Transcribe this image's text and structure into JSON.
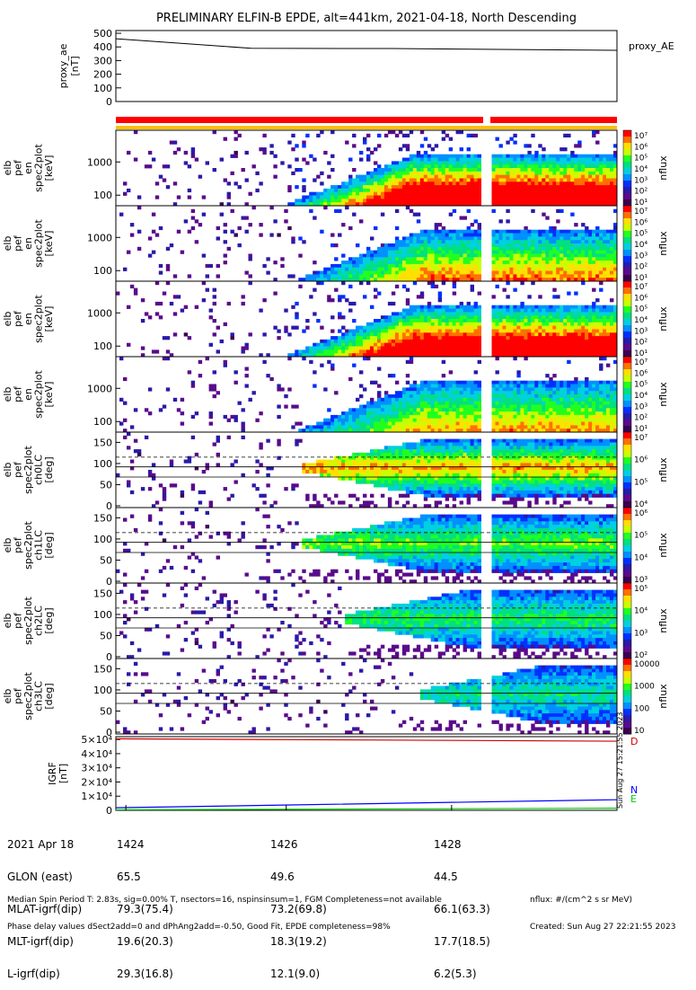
{
  "title": "PRELIMINARY ELFIN-B EPDE, alt=441km, 2021-04-18, North Descending",
  "colors": {
    "red": "#ff0000",
    "orange": "#ffbf00",
    "trace": "#000000",
    "bz": "#cc0000",
    "bx": "#0000ff",
    "by": "#00cc00"
  },
  "chart_data": [
    {
      "type": "line",
      "name": "proxy_ae",
      "ylabel": [
        "proxy_ae",
        "[nT]"
      ],
      "legend": "proxy_AE",
      "ylim": [
        0,
        520
      ],
      "yticks": [
        "500",
        "400",
        "300",
        "200",
        "100",
        "0"
      ],
      "x": [
        0,
        0.27,
        0.55,
        1.0
      ],
      "y": [
        460,
        390,
        388,
        375
      ]
    },
    {
      "type": "heatmap",
      "name": "en-spectrogram-1",
      "ylabel": [
        "elb",
        "pef",
        "en",
        "spec2plot",
        "[keV]"
      ],
      "yticks": [
        "1000",
        "100"
      ],
      "cbar": [
        "10⁷",
        "10⁶",
        "10⁵",
        "10⁴",
        "10³",
        "10²",
        "10¹"
      ],
      "cbar_label": "nflux"
    },
    {
      "type": "heatmap",
      "name": "en-spectrogram-2",
      "ylabel": [
        "elb",
        "pef",
        "en",
        "spec2plot",
        "[keV]"
      ],
      "yticks": [
        "1000",
        "100"
      ],
      "cbar": [
        "10⁷",
        "10⁶",
        "10⁵",
        "10⁴",
        "10³",
        "10²",
        "10¹"
      ],
      "cbar_label": "nflux"
    },
    {
      "type": "heatmap",
      "name": "en-spectrogram-3",
      "ylabel": [
        "elb",
        "pef",
        "en",
        "spec2plot",
        "[keV]"
      ],
      "yticks": [
        "1000",
        "100"
      ],
      "cbar": [
        "10⁷",
        "10⁶",
        "10⁵",
        "10⁴",
        "10³",
        "10²",
        "10¹"
      ],
      "cbar_label": "nflux"
    },
    {
      "type": "heatmap",
      "name": "en-spectrogram-4",
      "ylabel": [
        "elb",
        "pef",
        "en",
        "spec2plot",
        "[keV]"
      ],
      "yticks": [
        "1000",
        "100"
      ],
      "cbar": [
        "10⁷",
        "10⁶",
        "10⁵",
        "10⁴",
        "10³",
        "10²",
        "10¹"
      ],
      "cbar_label": "nflux"
    },
    {
      "type": "heatmap",
      "name": "pa-spectrogram-ch0",
      "ylabel": [
        "elb",
        "pef",
        "spec2plot",
        "ch0LC",
        "[deg]"
      ],
      "yticks": [
        "150",
        "100",
        "50",
        "0"
      ],
      "cbar": [
        "10⁷",
        "10⁶",
        "10⁵",
        "10⁴"
      ],
      "cbar_label": "nflux"
    },
    {
      "type": "heatmap",
      "name": "pa-spectrogram-ch1",
      "ylabel": [
        "elb",
        "pef",
        "spec2plot",
        "ch1LC",
        "[deg]"
      ],
      "yticks": [
        "150",
        "100",
        "50",
        "0"
      ],
      "cbar": [
        "10⁶",
        "10⁵",
        "10⁴",
        "10³"
      ],
      "cbar_label": "nflux"
    },
    {
      "type": "heatmap",
      "name": "pa-spectrogram-ch2",
      "ylabel": [
        "elb",
        "pef",
        "spec2plot",
        "ch2LC",
        "[deg]"
      ],
      "yticks": [
        "150",
        "100",
        "50",
        "0"
      ],
      "cbar": [
        "10⁵",
        "10⁴",
        "10³",
        "10²"
      ],
      "cbar_label": "nflux"
    },
    {
      "type": "heatmap",
      "name": "pa-spectrogram-ch3",
      "ylabel": [
        "elb",
        "pef",
        "spec2plot",
        "ch3LC",
        "[deg]"
      ],
      "yticks": [
        "150",
        "100",
        "50",
        "0"
      ],
      "cbar": [
        "10000",
        "1000",
        "100",
        "10"
      ],
      "cbar_label": "nflux"
    },
    {
      "type": "line",
      "name": "igrf",
      "ylabel": [
        "IGRF",
        "[nT]"
      ],
      "ylim": [
        0,
        52000
      ],
      "yticks": [
        "5×10⁴",
        "4×10⁴",
        "3×10⁴",
        "2×10⁴",
        "1×10⁴",
        "0"
      ],
      "series": [
        {
          "name": "D",
          "x": [
            0,
            1.0
          ],
          "y": [
            50500,
            48800
          ]
        },
        {
          "name": "N",
          "x": [
            0,
            0.35,
            1.0
          ],
          "y": [
            1800,
            3800,
            7500
          ]
        },
        {
          "name": "E",
          "x": [
            0,
            1.0
          ],
          "y": [
            400,
            1500
          ]
        }
      ],
      "legend": [
        "D",
        "N",
        "E"
      ]
    }
  ],
  "x_axis": {
    "ticks": [
      {
        "label": "1424",
        "glon": "65.5",
        "mlat": "79.3(75.4)",
        "mlt": "19.6(20.3)",
        "l": "29.3(16.8)"
      },
      {
        "label": "1426",
        "glon": "49.6",
        "mlat": "73.2(69.8)",
        "mlt": "18.3(19.2)",
        "l": "12.1(9.0)"
      },
      {
        "label": "1428",
        "glon": "44.5",
        "mlat": "66.1(63.3)",
        "mlt": "17.7(18.5)",
        "l": "6.2(5.3)"
      }
    ],
    "row_labels": [
      "2021 Apr 18",
      "GLON (east)",
      "MLAT-igrf(dip)",
      "MLT-igrf(dip)",
      "L-igrf(dip)"
    ]
  },
  "side_stamp": "Sun Aug 27 15:21:55 2023",
  "footer": {
    "line1": "Median Spin Period T: 2.83s, sig=0.00% T, nsectors=16, nspinsinsum=1, FGM Completeness=not available",
    "line2": "Phase delay values dSect2add=0 and dPhAng2add=-0.50, Good Fit, EPDE completeness=98%",
    "right1": "nflux: #/(cm^2 s sr MeV)",
    "right2": "Created: Sun Aug 27 22:21:55 2023"
  }
}
